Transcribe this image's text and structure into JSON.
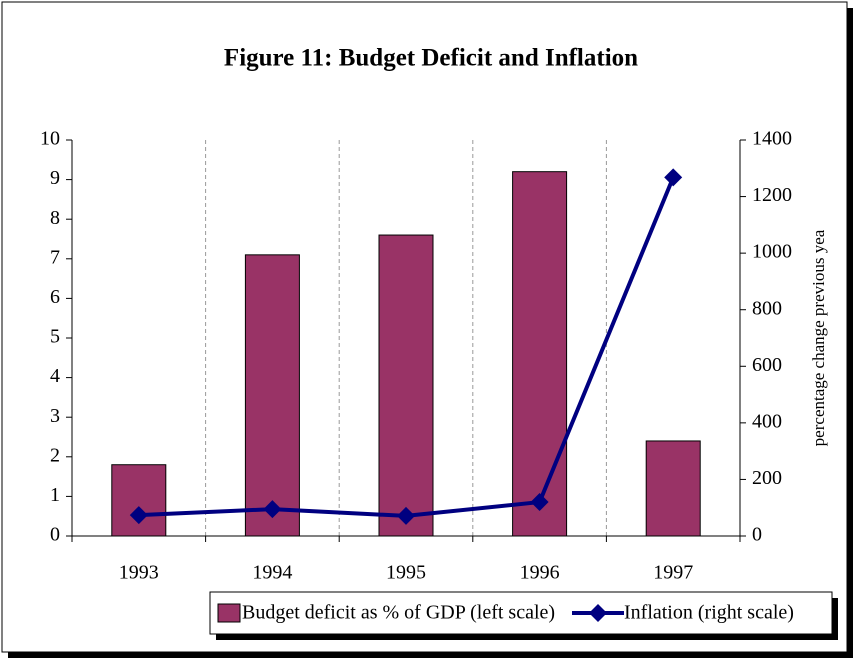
{
  "chart_data": {
    "type": "bar",
    "title": "Figure 11: Budget Deficit and Inflation",
    "y2label": "percentage change previous yea",
    "categories": [
      "1993",
      "1994",
      "1995",
      "1996",
      "1997"
    ],
    "series": [
      {
        "name": "Budget deficit as % of GDP (left scale)",
        "type": "bar",
        "color": "#993366",
        "values": [
          1.8,
          7.1,
          7.6,
          9.2,
          2.4
        ]
      },
      {
        "name": "Inflation (right scale)",
        "type": "line",
        "axis": "y2",
        "color": "#000080",
        "values": [
          74,
          95,
          71,
          120,
          1268
        ]
      }
    ],
    "ylim": [
      0,
      10
    ],
    "yticks": [
      0,
      1,
      2,
      3,
      4,
      5,
      6,
      7,
      8,
      9,
      10
    ],
    "y2lim": [
      0,
      1400
    ],
    "y2ticks": [
      0,
      200,
      400,
      600,
      800,
      1000,
      1200,
      1400
    ],
    "grid": "x",
    "legend": "bottom"
  }
}
